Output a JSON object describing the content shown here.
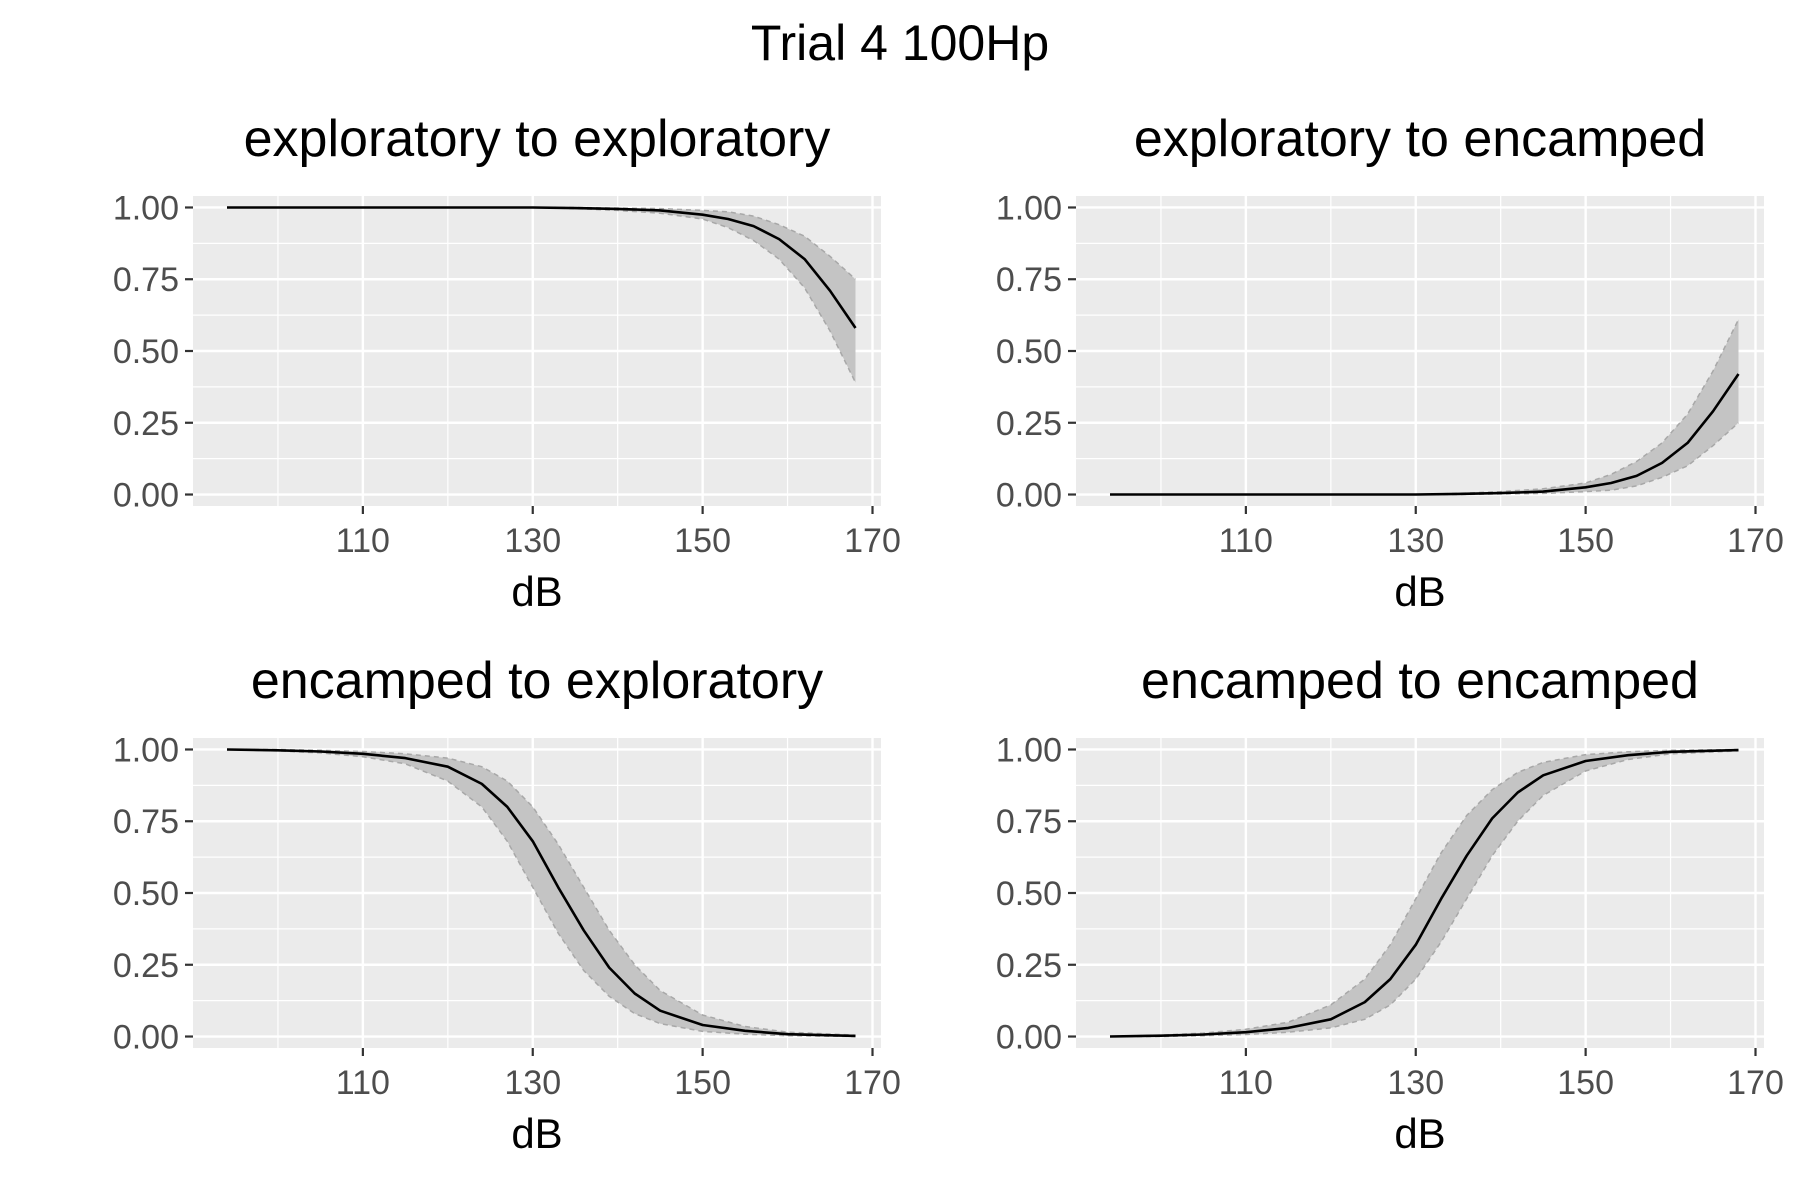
{
  "title": "Trial 4 100Hp",
  "chart_data": [
    {
      "type": "line",
      "title": "exploratory to exploratory",
      "xlabel": "dB",
      "ylabel": "",
      "xlim": [
        90,
        171
      ],
      "ylim": [
        -0.04,
        1.04
      ],
      "xticks": [
        110,
        130,
        150,
        170
      ],
      "xticklabels": [
        "110",
        "130",
        "150",
        "170"
      ],
      "yticks": [
        0,
        0.25,
        0.5,
        0.75,
        1
      ],
      "yticklabels": [
        "0.00",
        "0.25",
        "0.50",
        "0.75",
        "1.00"
      ],
      "x": [
        94,
        100,
        110,
        120,
        130,
        135,
        140,
        145,
        150,
        153,
        156,
        159,
        162,
        165,
        168
      ],
      "y": [
        1.0,
        1.0,
        1.0,
        1.0,
        1.0,
        0.998,
        0.995,
        0.99,
        0.975,
        0.96,
        0.935,
        0.89,
        0.82,
        0.71,
        0.58
      ],
      "lower": [
        1.0,
        1.0,
        1.0,
        1.0,
        1.0,
        0.996,
        0.99,
        0.98,
        0.96,
        0.93,
        0.885,
        0.82,
        0.72,
        0.57,
        0.39
      ],
      "upper": [
        1.0,
        1.0,
        1.0,
        1.0,
        1.0,
        1.0,
        0.998,
        0.996,
        0.99,
        0.985,
        0.97,
        0.94,
        0.9,
        0.83,
        0.75
      ],
      "grid": true,
      "legend": "none"
    },
    {
      "type": "line",
      "title": "exploratory to encamped",
      "xlabel": "dB",
      "ylabel": "",
      "xlim": [
        90,
        171
      ],
      "ylim": [
        -0.04,
        1.04
      ],
      "xticks": [
        110,
        130,
        150,
        170
      ],
      "xticklabels": [
        "110",
        "130",
        "150",
        "170"
      ],
      "yticks": [
        0,
        0.25,
        0.5,
        0.75,
        1
      ],
      "yticklabels": [
        "0.00",
        "0.25",
        "0.50",
        "0.75",
        "1.00"
      ],
      "x": [
        94,
        100,
        110,
        120,
        130,
        135,
        140,
        145,
        150,
        153,
        156,
        159,
        162,
        165,
        168
      ],
      "y": [
        0.0,
        0.0,
        0.0,
        0.0,
        0.0,
        0.002,
        0.005,
        0.01,
        0.025,
        0.04,
        0.065,
        0.11,
        0.18,
        0.29,
        0.42
      ],
      "lower": [
        0.0,
        0.0,
        0.0,
        0.0,
        0.0,
        0.0,
        0.002,
        0.004,
        0.01,
        0.015,
        0.03,
        0.06,
        0.1,
        0.17,
        0.25
      ],
      "upper": [
        0.0,
        0.0,
        0.0,
        0.0,
        0.0,
        0.004,
        0.01,
        0.02,
        0.04,
        0.07,
        0.115,
        0.18,
        0.28,
        0.43,
        0.61
      ],
      "grid": true,
      "legend": "none"
    },
    {
      "type": "line",
      "title": "encamped to exploratory",
      "xlabel": "dB",
      "ylabel": "",
      "xlim": [
        90,
        171
      ],
      "ylim": [
        -0.04,
        1.04
      ],
      "xticks": [
        110,
        130,
        150,
        170
      ],
      "xticklabels": [
        "110",
        "130",
        "150",
        "170"
      ],
      "yticks": [
        0,
        0.25,
        0.5,
        0.75,
        1
      ],
      "yticklabels": [
        "0.00",
        "0.25",
        "0.50",
        "0.75",
        "1.00"
      ],
      "x": [
        94,
        100,
        105,
        110,
        115,
        120,
        124,
        127,
        130,
        133,
        136,
        139,
        142,
        145,
        150,
        155,
        160,
        168
      ],
      "y": [
        1.0,
        0.997,
        0.993,
        0.985,
        0.97,
        0.94,
        0.88,
        0.8,
        0.68,
        0.52,
        0.37,
        0.24,
        0.15,
        0.09,
        0.04,
        0.02,
        0.008,
        0.002
      ],
      "lower": [
        1.0,
        0.995,
        0.988,
        0.975,
        0.95,
        0.89,
        0.8,
        0.68,
        0.52,
        0.36,
        0.23,
        0.14,
        0.08,
        0.045,
        0.018,
        0.008,
        0.003,
        0.0
      ],
      "upper": [
        1.0,
        1.0,
        0.997,
        0.993,
        0.985,
        0.97,
        0.94,
        0.89,
        0.8,
        0.67,
        0.52,
        0.37,
        0.25,
        0.16,
        0.075,
        0.035,
        0.015,
        0.005
      ],
      "grid": true,
      "legend": "none"
    },
    {
      "type": "line",
      "title": "encamped to encamped",
      "xlabel": "dB",
      "ylabel": "",
      "xlim": [
        90,
        171
      ],
      "ylim": [
        -0.04,
        1.04
      ],
      "xticks": [
        110,
        130,
        150,
        170
      ],
      "xticklabels": [
        "110",
        "130",
        "150",
        "170"
      ],
      "yticks": [
        0,
        0.25,
        0.5,
        0.75,
        1
      ],
      "yticklabels": [
        "0.00",
        "0.25",
        "0.50",
        "0.75",
        "1.00"
      ],
      "x": [
        94,
        100,
        105,
        110,
        115,
        120,
        124,
        127,
        130,
        133,
        136,
        139,
        142,
        145,
        150,
        155,
        160,
        168
      ],
      "y": [
        0.0,
        0.003,
        0.007,
        0.015,
        0.03,
        0.06,
        0.12,
        0.2,
        0.32,
        0.48,
        0.63,
        0.76,
        0.85,
        0.91,
        0.96,
        0.98,
        0.992,
        0.998
      ],
      "lower": [
        0.0,
        0.0,
        0.003,
        0.007,
        0.015,
        0.03,
        0.06,
        0.11,
        0.2,
        0.33,
        0.48,
        0.63,
        0.75,
        0.84,
        0.925,
        0.965,
        0.985,
        0.995
      ],
      "upper": [
        0.0,
        0.005,
        0.012,
        0.025,
        0.05,
        0.11,
        0.2,
        0.32,
        0.48,
        0.64,
        0.77,
        0.86,
        0.92,
        0.955,
        0.982,
        0.992,
        0.997,
        1.0
      ],
      "grid": true,
      "legend": "none"
    }
  ]
}
